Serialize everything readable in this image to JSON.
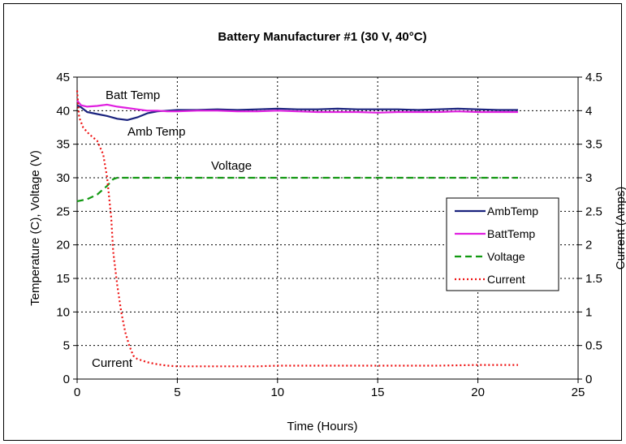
{
  "chart_data": {
    "type": "line",
    "title": "Battery Manufacturer #1 (30 V, 40°C)",
    "xlabel": "Time (Hours)",
    "ylabel": "Temperature (C), Voltage (V)",
    "y2label": "Current (Amps)",
    "xlim": [
      0,
      25
    ],
    "ylim": [
      0,
      45
    ],
    "y2lim": [
      0,
      4.5
    ],
    "xticks": [
      "0",
      "5",
      "10",
      "15",
      "20",
      "25"
    ],
    "yticks": [
      "0",
      "5",
      "10",
      "15",
      "20",
      "25",
      "30",
      "35",
      "40",
      "45"
    ],
    "y2ticks": [
      "0",
      "0.5",
      "1",
      "1.5",
      "2",
      "2.5",
      "3",
      "3.5",
      "4",
      "4.5"
    ],
    "grid": true,
    "legend_position": "right",
    "annotations": [
      "Batt Temp",
      "Amb Temp",
      "Voltage",
      "Current"
    ],
    "series": [
      {
        "name": "AmbTemp",
        "axis": "left",
        "color": "#1a237e",
        "dash": "solid",
        "x": [
          0,
          0.2,
          0.5,
          1.0,
          1.5,
          2.0,
          2.5,
          3.0,
          3.5,
          4.0,
          4.5,
          5,
          6,
          7,
          8,
          9,
          10,
          11,
          12,
          13,
          14,
          15,
          16,
          17,
          18,
          19,
          20,
          21,
          22
        ],
        "y": [
          40.8,
          40.5,
          39.8,
          39.5,
          39.2,
          38.8,
          38.6,
          39.0,
          39.6,
          39.9,
          40.0,
          40.1,
          40.1,
          40.2,
          40.1,
          40.2,
          40.3,
          40.2,
          40.2,
          40.3,
          40.2,
          40.2,
          40.2,
          40.1,
          40.2,
          40.3,
          40.2,
          40.1,
          40.1
        ]
      },
      {
        "name": "BattTemp",
        "axis": "left",
        "color": "#e020e0",
        "dash": "solid",
        "x": [
          0,
          0.2,
          0.5,
          1.0,
          1.5,
          2.0,
          2.5,
          3.0,
          3.5,
          4.0,
          4.5,
          5,
          6,
          7,
          8,
          9,
          10,
          11,
          12,
          13,
          14,
          15,
          16,
          17,
          18,
          19,
          20,
          21,
          22
        ],
        "y": [
          41.5,
          40.8,
          40.6,
          40.7,
          40.9,
          40.6,
          40.4,
          40.2,
          40.0,
          40.0,
          39.9,
          39.9,
          40.0,
          40.0,
          39.9,
          39.9,
          40.0,
          39.9,
          39.8,
          39.8,
          39.8,
          39.7,
          39.8,
          39.8,
          39.8,
          39.9,
          39.8,
          39.8,
          39.8
        ]
      },
      {
        "name": "Voltage",
        "axis": "left",
        "color": "#119911",
        "dash": "dashed",
        "x": [
          0,
          0.5,
          1.0,
          1.5,
          1.8,
          2.0,
          3,
          5,
          10,
          15,
          20,
          22
        ],
        "y": [
          26.5,
          26.8,
          27.5,
          28.8,
          29.8,
          30.0,
          30.0,
          30.0,
          30.0,
          30.0,
          30.0,
          30.0
        ]
      },
      {
        "name": "Current",
        "axis": "right",
        "color": "#ee1111",
        "dash": "dotted",
        "x": [
          0,
          0.1,
          0.3,
          0.6,
          1.0,
          1.3,
          1.5,
          1.7,
          1.8,
          2.0,
          2.2,
          2.4,
          2.6,
          2.8,
          3.0,
          3.5,
          4.0,
          4.5,
          5,
          6,
          7,
          8,
          9,
          10,
          12,
          15,
          18,
          20,
          22
        ],
        "y": [
          4.3,
          3.9,
          3.75,
          3.65,
          3.55,
          3.35,
          3.0,
          2.4,
          1.9,
          1.4,
          1.0,
          0.7,
          0.5,
          0.35,
          0.3,
          0.25,
          0.22,
          0.2,
          0.19,
          0.19,
          0.19,
          0.19,
          0.19,
          0.2,
          0.2,
          0.2,
          0.2,
          0.21,
          0.21
        ]
      }
    ]
  }
}
